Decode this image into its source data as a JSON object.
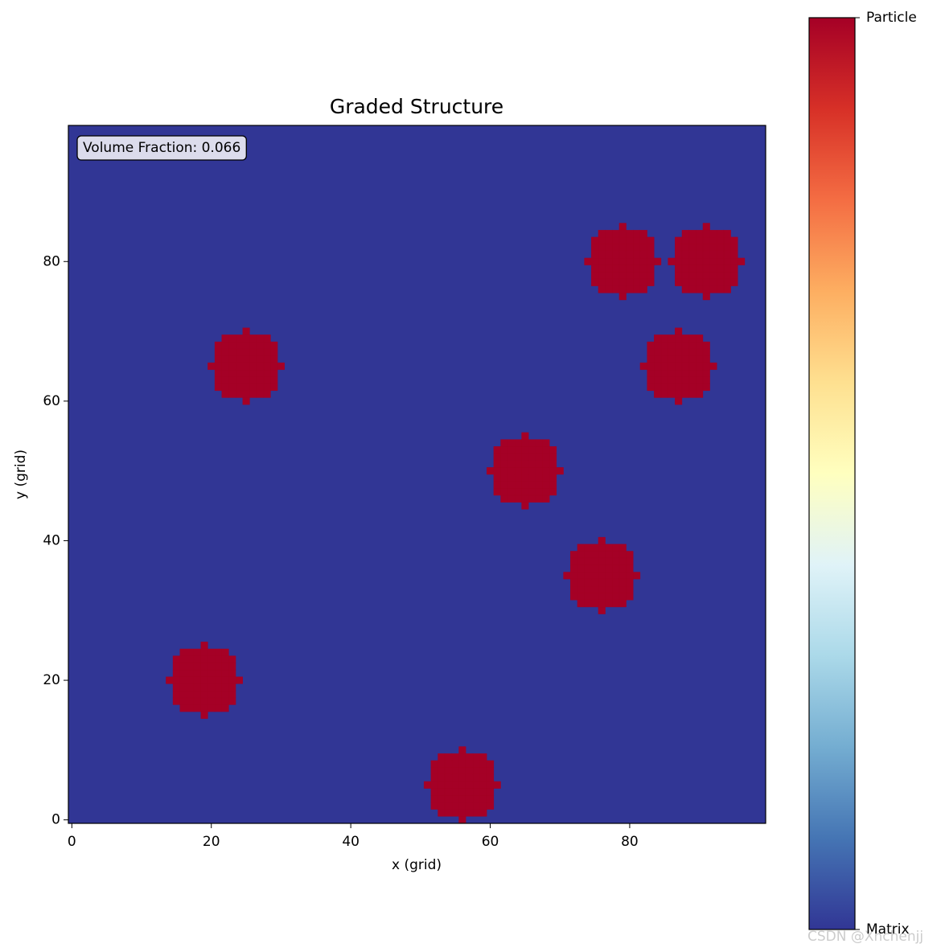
{
  "chart_data": {
    "type": "heatmap",
    "title": "Graded Structure",
    "x_label": "x (grid)",
    "y_label": "y (grid)",
    "annotation": "Volume Fraction: 0.066",
    "xlim": [
      -0.5,
      99.5
    ],
    "ylim": [
      -0.5,
      99.5
    ],
    "xticks": [
      0,
      20,
      40,
      60,
      80
    ],
    "yticks": [
      0,
      20,
      40,
      60,
      80
    ],
    "matrix_value": 0,
    "particle_value": 1,
    "particles": [
      {
        "x": 25,
        "y": 65,
        "r": 5
      },
      {
        "x": 79,
        "y": 80,
        "r": 5
      },
      {
        "x": 91,
        "y": 80,
        "r": 5
      },
      {
        "x": 87,
        "y": 65,
        "r": 5
      },
      {
        "x": 65,
        "y": 50,
        "r": 5
      },
      {
        "x": 76,
        "y": 35,
        "r": 5
      },
      {
        "x": 19,
        "y": 20,
        "r": 5
      },
      {
        "x": 56,
        "y": 5,
        "r": 5
      }
    ],
    "colormap": [
      "#313695",
      "#4575b4",
      "#74add1",
      "#abd9e9",
      "#e0f3f8",
      "#ffffbf",
      "#fee090",
      "#fdae61",
      "#f46d43",
      "#d73027",
      "#a50026"
    ],
    "colorbar": {
      "lim": [
        0,
        1
      ],
      "ticks": [
        {
          "value": 0,
          "label": "Matrix"
        },
        {
          "value": 1,
          "label": "Particle"
        }
      ]
    },
    "watermark": "CSDN @Xhchenjj"
  }
}
